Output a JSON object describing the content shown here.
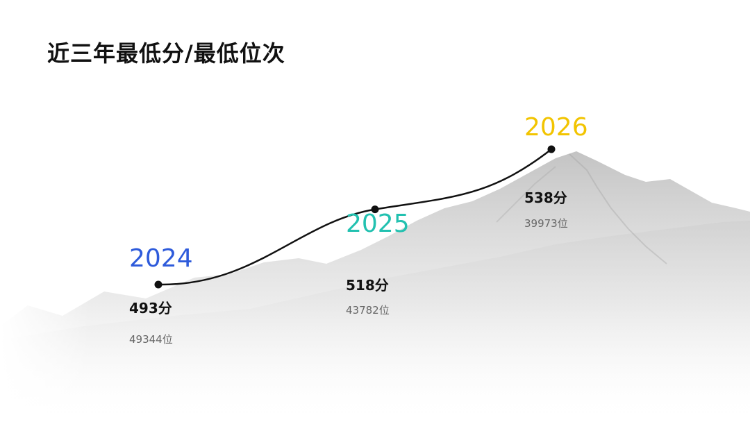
{
  "title": "近三年最低分/最低位次",
  "colors": {
    "line": "#111111",
    "point": "#111111",
    "score_text": "#111111",
    "rank_text": "#666666"
  },
  "chart_data": {
    "type": "line",
    "x": [
      "2024",
      "2025",
      "2026"
    ],
    "series": [
      {
        "values": [
          493,
          518,
          538
        ],
        "labels": [
          "493分",
          "518分",
          "538分"
        ],
        "ranks": [
          "49344位",
          "43782位",
          "39973位"
        ]
      }
    ],
    "year_colors": [
      "#2E5BDB",
      "#22C1B0",
      "#F2C400"
    ],
    "grid": false,
    "legend": "none"
  }
}
